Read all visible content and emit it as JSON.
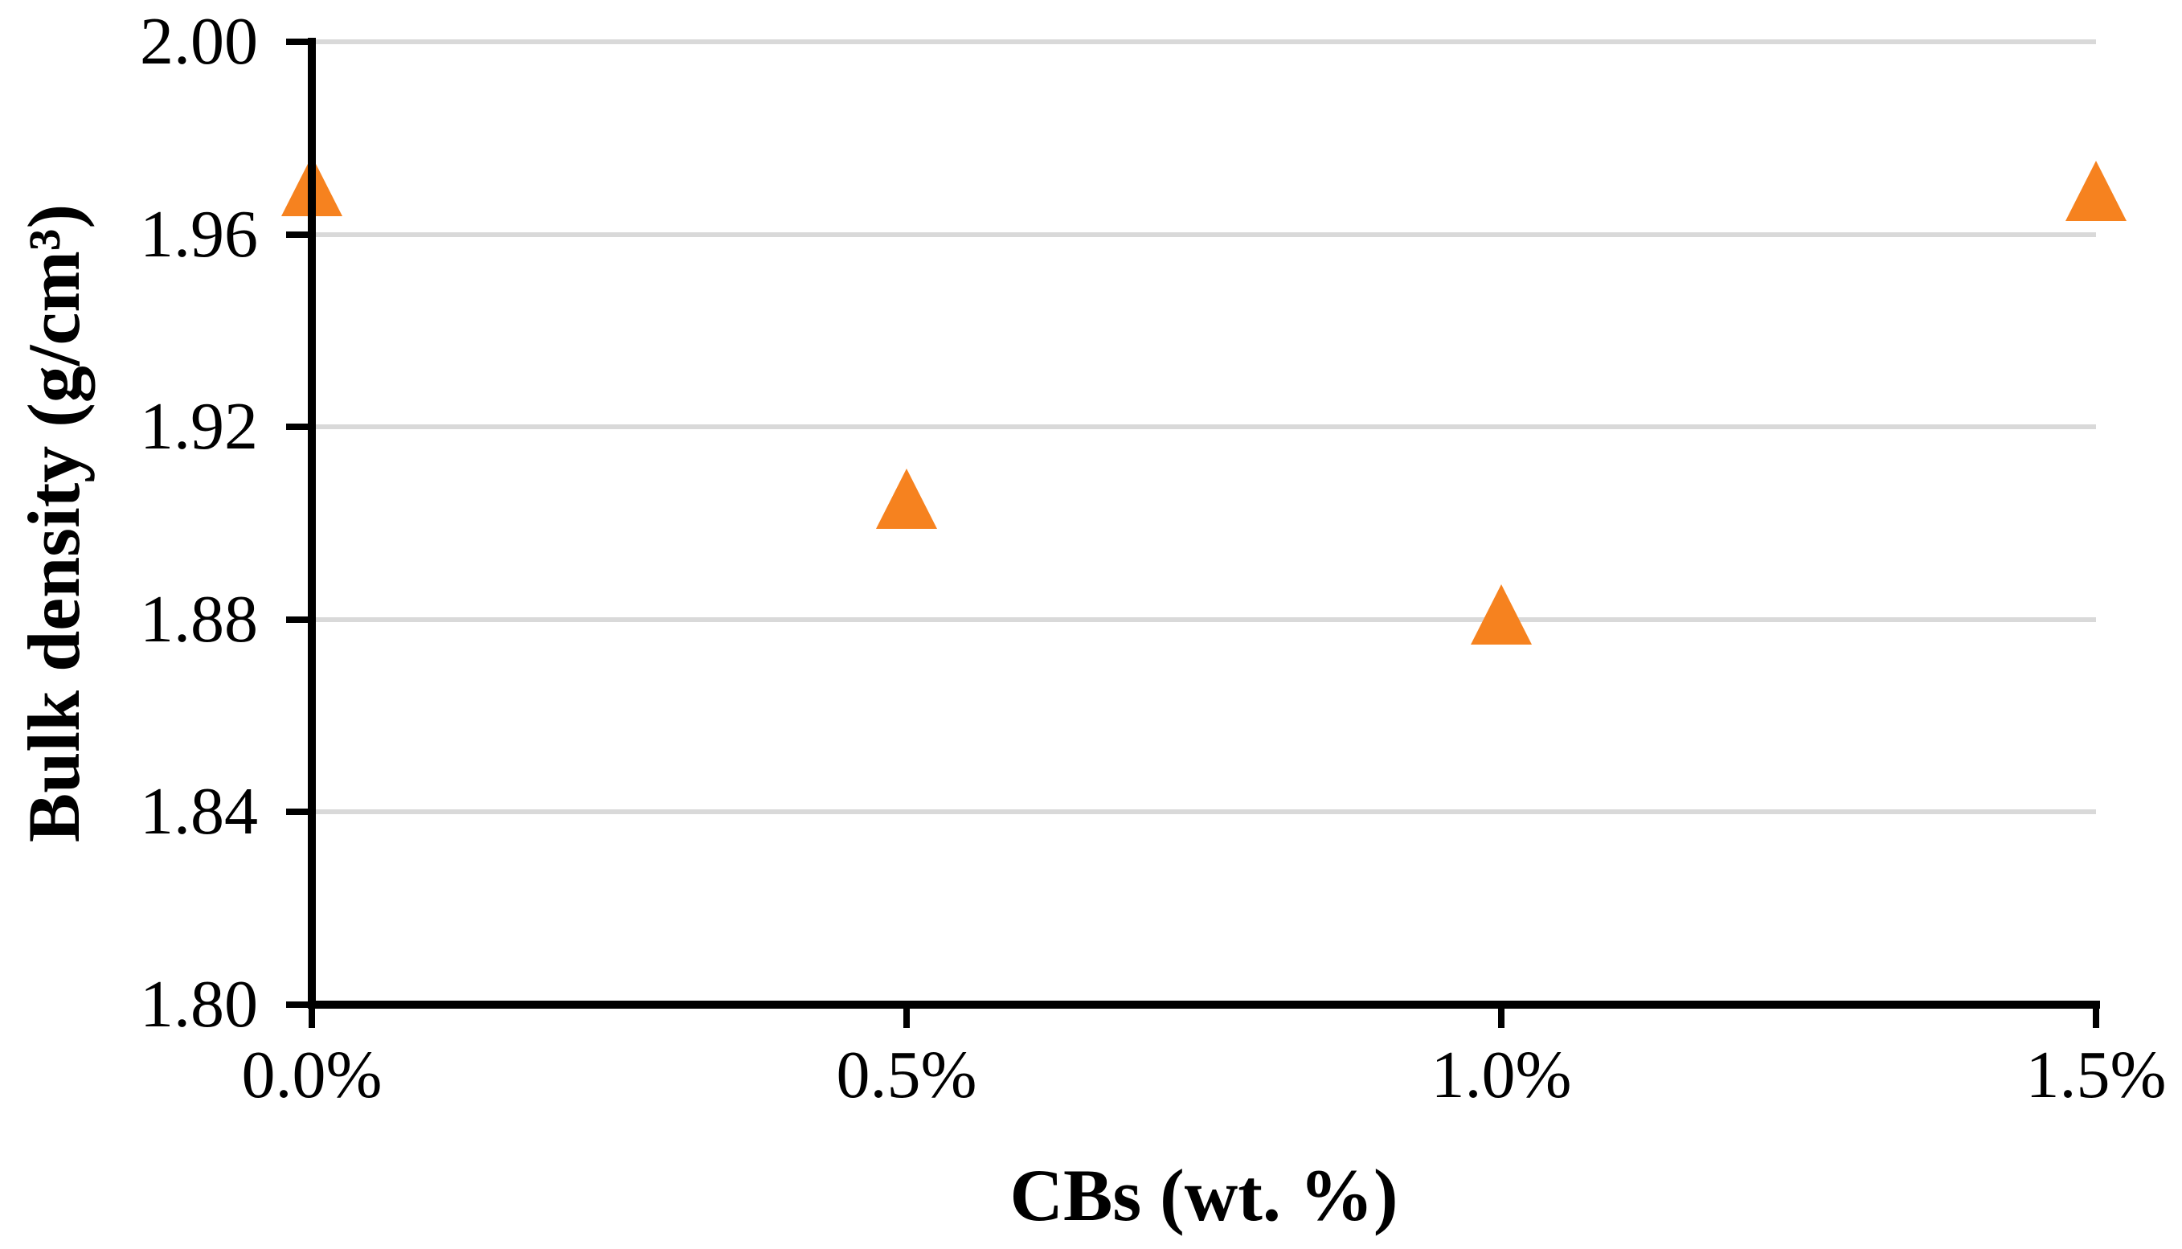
{
  "chart_data": {
    "type": "scatter",
    "title": "",
    "xlabel": "CBs (wt. %)",
    "ylabel": "Bulk density (g/cm³)",
    "categories": [
      "0.0%",
      "0.5%",
      "1.0%",
      "1.5%"
    ],
    "series": [
      {
        "name": "Bulk density",
        "marker": "triangle-up",
        "color": "#F6821F",
        "values": [
          1.97,
          1.905,
          1.881,
          1.969
        ]
      }
    ],
    "y_axis": {
      "min": 1.8,
      "max": 2.0,
      "step": 0.04,
      "tick_labels": [
        "2.00",
        "1.96",
        "1.92",
        "1.88",
        "1.84",
        "1.80"
      ]
    },
    "x_axis": {
      "tick_labels": [
        "0.0%",
        "0.5%",
        "1.0%",
        "1.5%"
      ]
    },
    "grid": "horizontal",
    "legend": "none",
    "gridline_color": "#D9D9D9",
    "axis_color": "#000000",
    "text_color": "#000000"
  }
}
